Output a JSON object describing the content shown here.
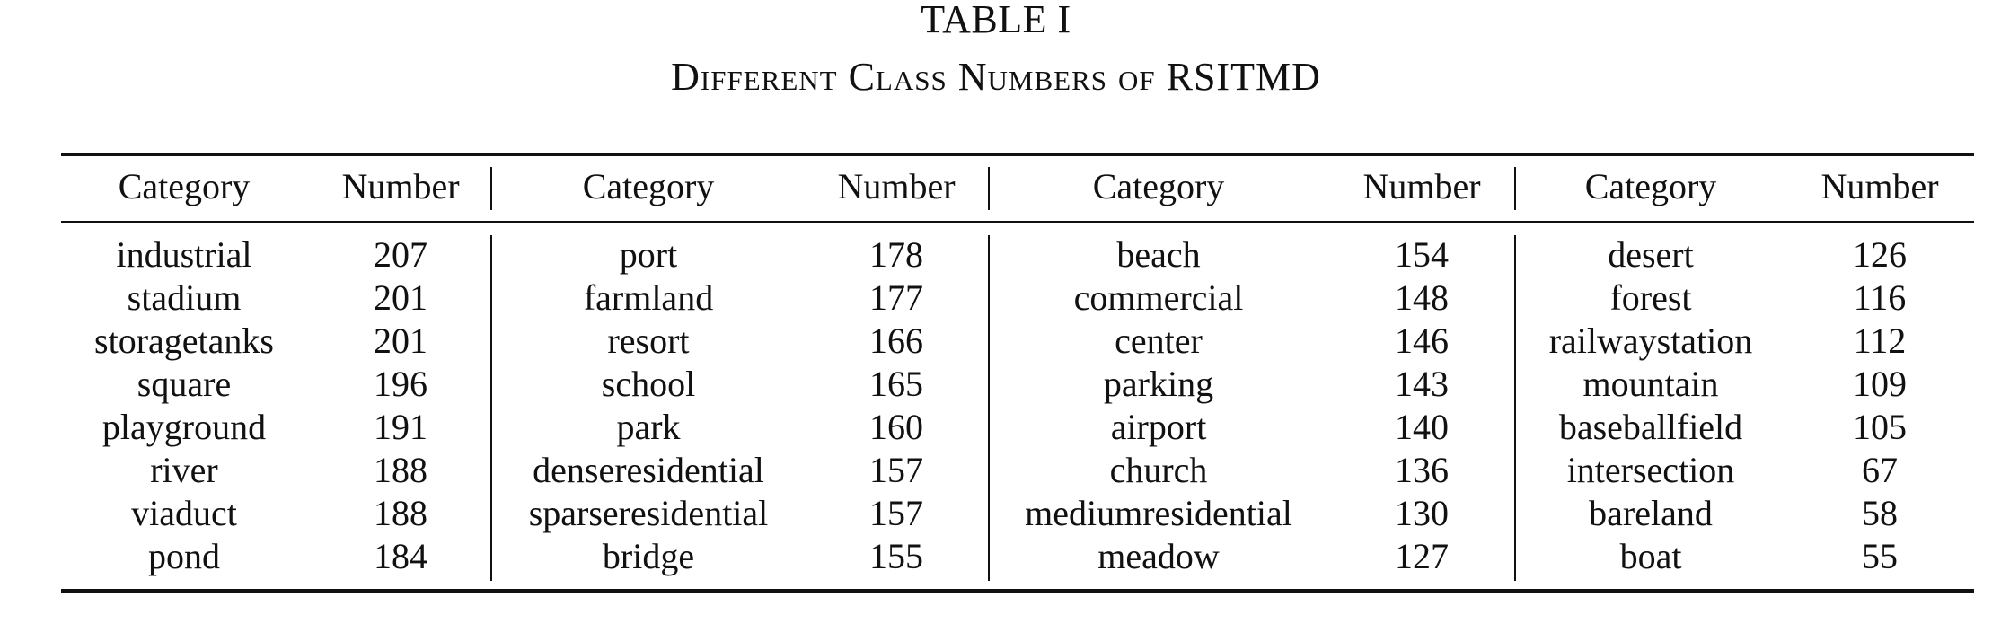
{
  "table_number": "TABLE I",
  "caption": "Different Class Numbers of RSITMD",
  "headers": [
    "Category",
    "Number",
    "Category",
    "Number",
    "Category",
    "Number",
    "Category",
    "Number"
  ],
  "groups": [
    {
      "rows": [
        {
          "category": "industrial",
          "number": "207"
        },
        {
          "category": "stadium",
          "number": "201"
        },
        {
          "category": "storagetanks",
          "number": "201"
        },
        {
          "category": "square",
          "number": "196"
        },
        {
          "category": "playground",
          "number": "191"
        },
        {
          "category": "river",
          "number": "188"
        },
        {
          "category": "viaduct",
          "number": "188"
        },
        {
          "category": "pond",
          "number": "184"
        }
      ]
    },
    {
      "rows": [
        {
          "category": "port",
          "number": "178"
        },
        {
          "category": "farmland",
          "number": "177"
        },
        {
          "category": "resort",
          "number": "166"
        },
        {
          "category": "school",
          "number": "165"
        },
        {
          "category": "park",
          "number": "160"
        },
        {
          "category": "denseresidential",
          "number": "157"
        },
        {
          "category": "sparseresidential",
          "number": "157"
        },
        {
          "category": "bridge",
          "number": "155"
        }
      ]
    },
    {
      "rows": [
        {
          "category": "beach",
          "number": "154"
        },
        {
          "category": "commercial",
          "number": "148"
        },
        {
          "category": "center",
          "number": "146"
        },
        {
          "category": "parking",
          "number": "143"
        },
        {
          "category": "airport",
          "number": "140"
        },
        {
          "category": "church",
          "number": "136"
        },
        {
          "category": "mediumresidential",
          "number": "130"
        },
        {
          "category": "meadow",
          "number": "127"
        }
      ]
    },
    {
      "rows": [
        {
          "category": "desert",
          "number": "126"
        },
        {
          "category": "forest",
          "number": "116"
        },
        {
          "category": "railwaystation",
          "number": "112"
        },
        {
          "category": "mountain",
          "number": "109"
        },
        {
          "category": "baseballfield",
          "number": "105"
        },
        {
          "category": "intersection",
          "number": "67"
        },
        {
          "category": "bareland",
          "number": "58"
        },
        {
          "category": "boat",
          "number": "55"
        }
      ]
    }
  ]
}
